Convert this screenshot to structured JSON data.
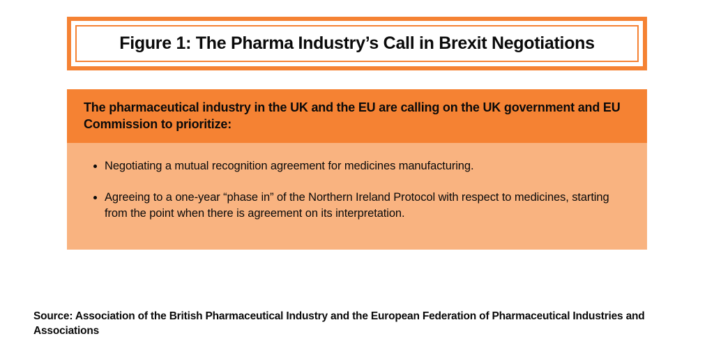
{
  "colors": {
    "accent": "#f58233",
    "accent_light": "#f9b380",
    "text": "#0a0a0a",
    "background": "#ffffff"
  },
  "title": "Figure 1: The Pharma Industry’s Call in Brexit Negotiations",
  "header": "The pharmaceutical industry in the UK and the EU are calling on the UK government and EU Commission to prioritize:",
  "bullets": [
    "Negotiating a mutual recognition agreement for medicines manufacturing.",
    "Agreeing to a one-year “phase in” of the Northern Ireland Protocol with respect to medicines, starting from the point when there is agreement on its interpretation."
  ],
  "source": "Source: Association of the British Pharmaceutical Industry and the European Federation of Pharmaceutical Industries and Associations"
}
